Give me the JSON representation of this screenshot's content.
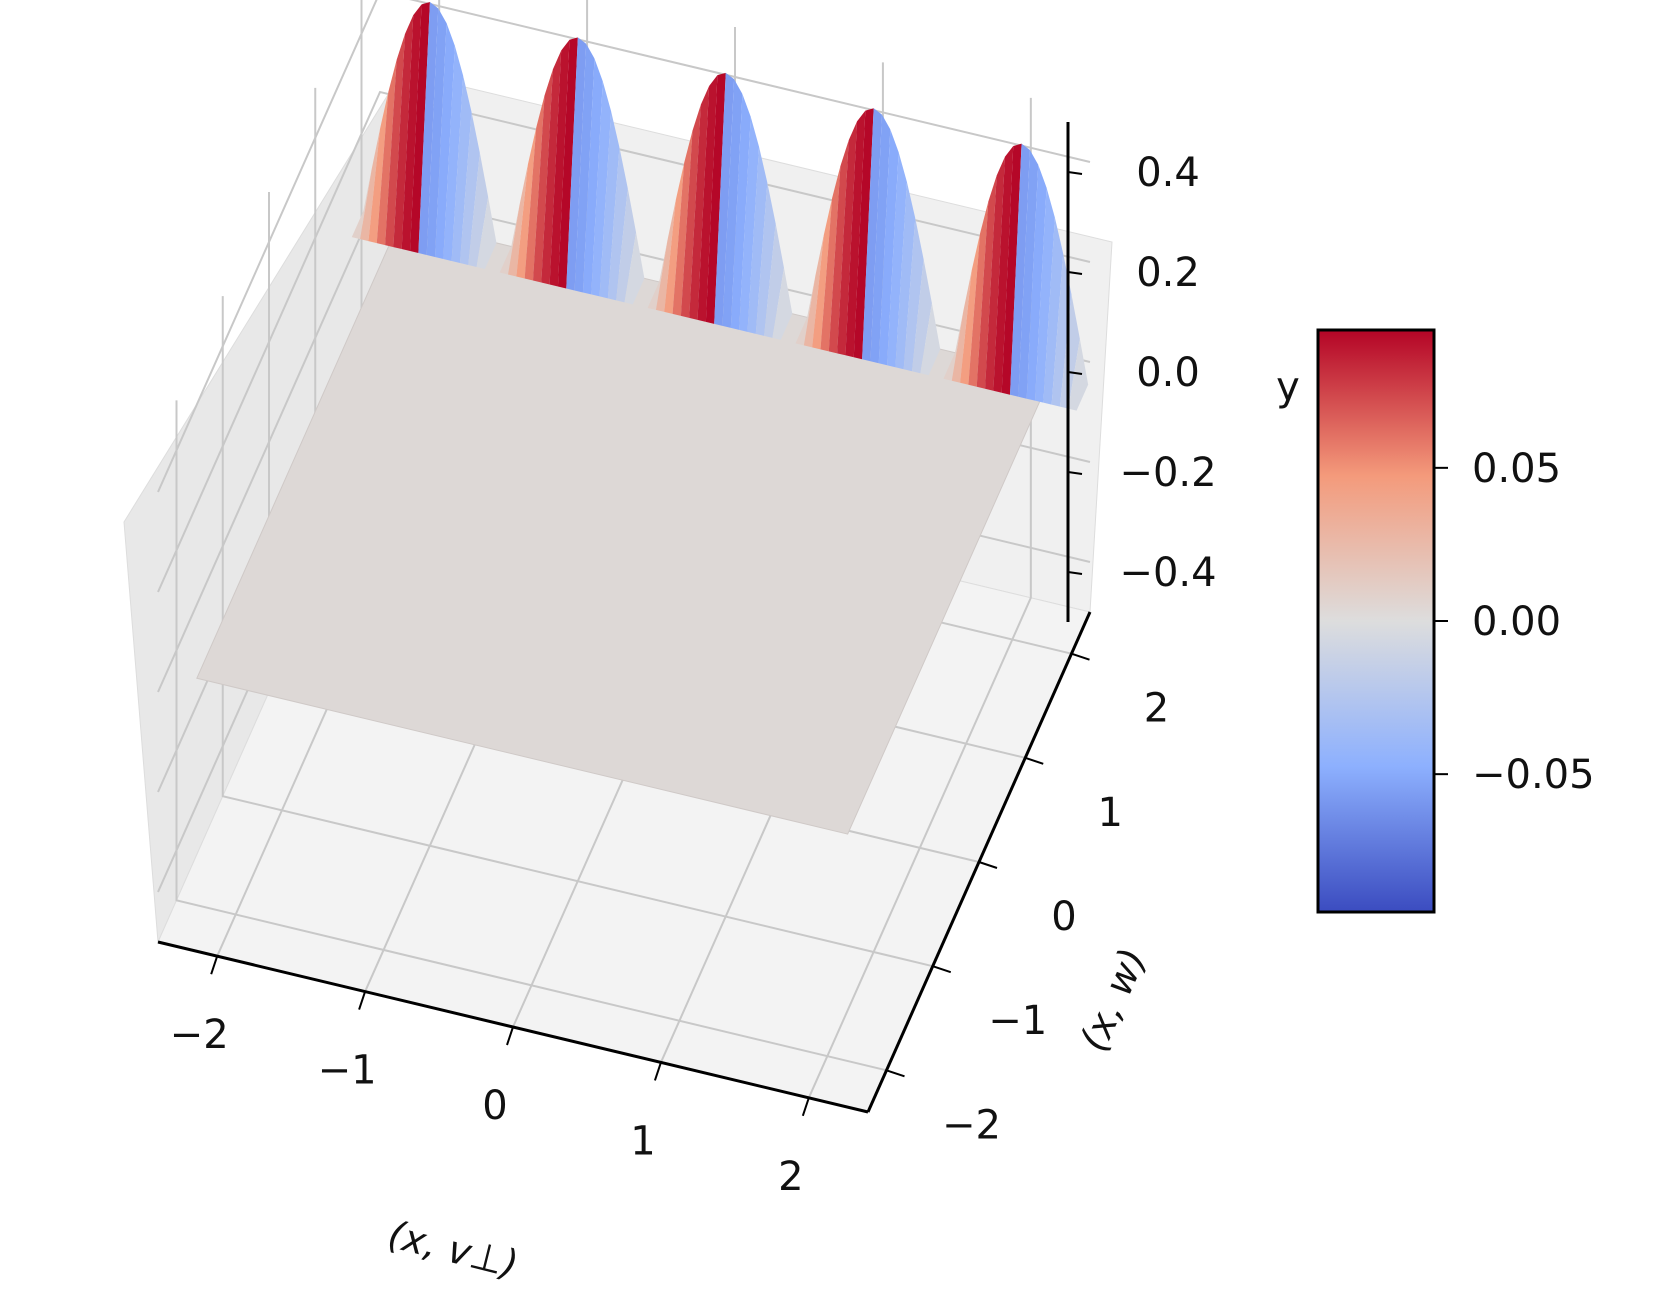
{
  "chart_data": {
    "type": "surface3d",
    "xlabel": "(x, v⊥)",
    "ylabel": "(x, w)",
    "zlabel": "y",
    "xlim": [
      -2.4,
      2.4
    ],
    "ylim": [
      -2.4,
      2.4
    ],
    "zlim": [
      -0.5,
      0.5
    ],
    "x_ticks": [
      "−2",
      "−1",
      "0",
      "1",
      "2"
    ],
    "x_tick_values": [
      -2,
      -1,
      0,
      1,
      2
    ],
    "y_ticks": [
      "−2",
      "−1",
      "0",
      "1",
      "2"
    ],
    "y_tick_values": [
      -2,
      -1,
      0,
      1,
      2
    ],
    "z_ticks": [
      "−0.4",
      "−0.2",
      "0.0",
      "0.2",
      "0.4"
    ],
    "z_tick_values": [
      -0.4,
      -0.2,
      0.0,
      0.2,
      0.4
    ],
    "surface": {
      "flat_value": 0.0,
      "ridge_edge_y": 2.2,
      "ridge_count": 5,
      "ridge_amplitude": 0.45,
      "ridge_x_centers": [
        -2.0,
        -1.0,
        0.0,
        1.0,
        2.0
      ],
      "colormap": "coolwarm"
    },
    "colorbar": {
      "ticks": [
        "0.05",
        "0.00",
        "−0.05"
      ],
      "tick_values": [
        0.05,
        0.0,
        -0.05
      ],
      "range": [
        -0.095,
        0.095
      ],
      "colormap": "coolwarm"
    },
    "grid": true
  }
}
